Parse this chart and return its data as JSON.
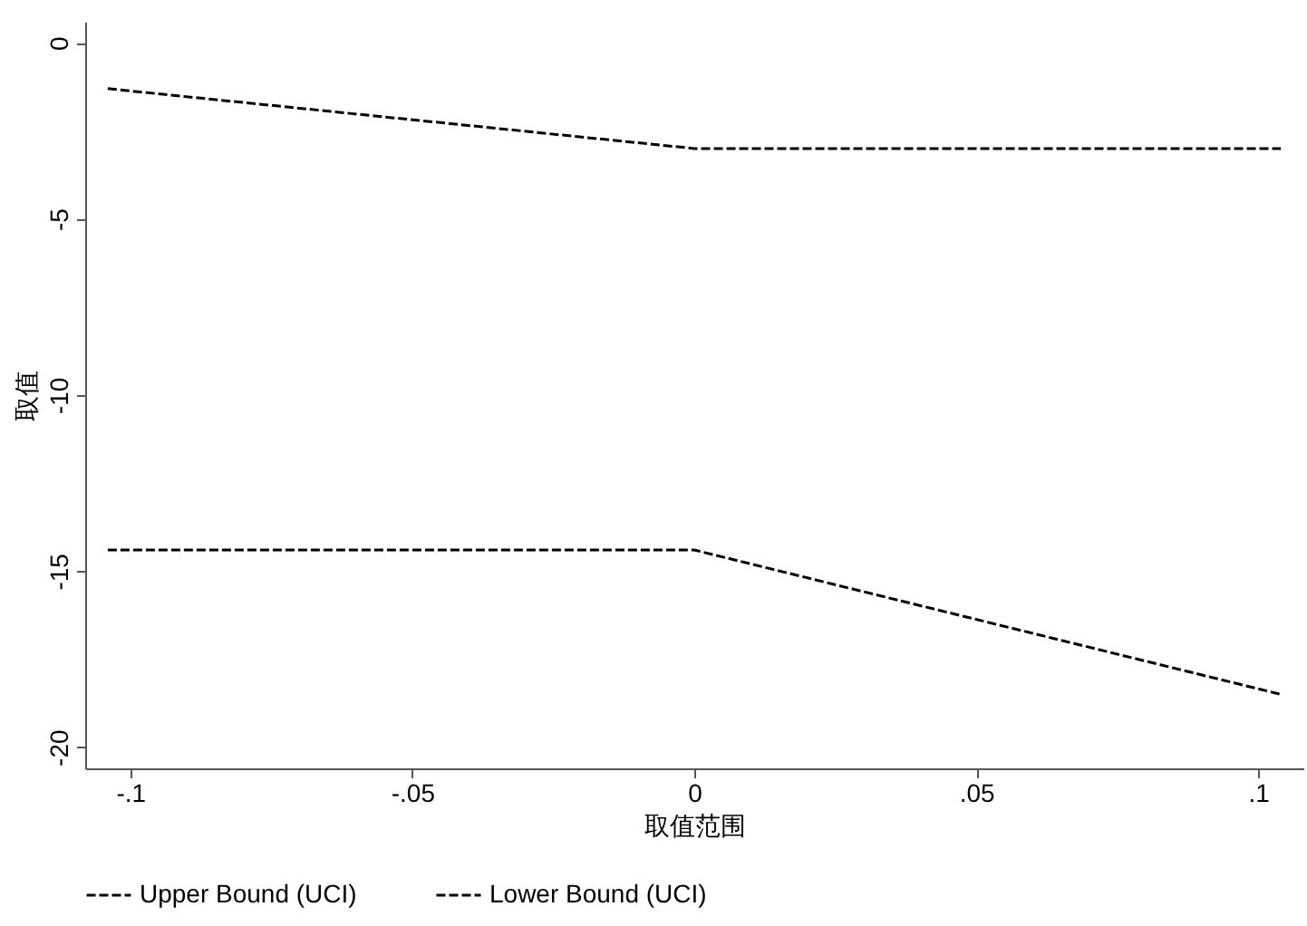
{
  "chart_data": {
    "type": "line",
    "xlabel": "取值范围",
    "ylabel": "取值",
    "x": [
      -0.104,
      0,
      0.104
    ],
    "series": [
      {
        "name": "Upper Bound (UCI)",
        "color": "#000000",
        "values": [
          -1.3,
          -3.0,
          -3.0
        ]
      },
      {
        "name": "Lower Bound (UCI)",
        "color": "#000000",
        "values": [
          -14.4,
          -14.4,
          -18.5
        ]
      }
    ],
    "xlim": [
      -0.108,
      0.108
    ],
    "xticks": [
      {
        "value": -0.1,
        "label": "-.1"
      },
      {
        "value": -0.05,
        "label": "-.05"
      },
      0,
      {
        "value": 0.05,
        "label": ".05"
      },
      {
        "value": 0.1,
        "label": ".1"
      }
    ],
    "ylim": [
      -20.6,
      0.6
    ],
    "yticks": [
      -20,
      -15,
      -10,
      -5,
      0
    ],
    "grid": false,
    "legend": "bottom",
    "line_style": "dashed",
    "marker": "none"
  }
}
